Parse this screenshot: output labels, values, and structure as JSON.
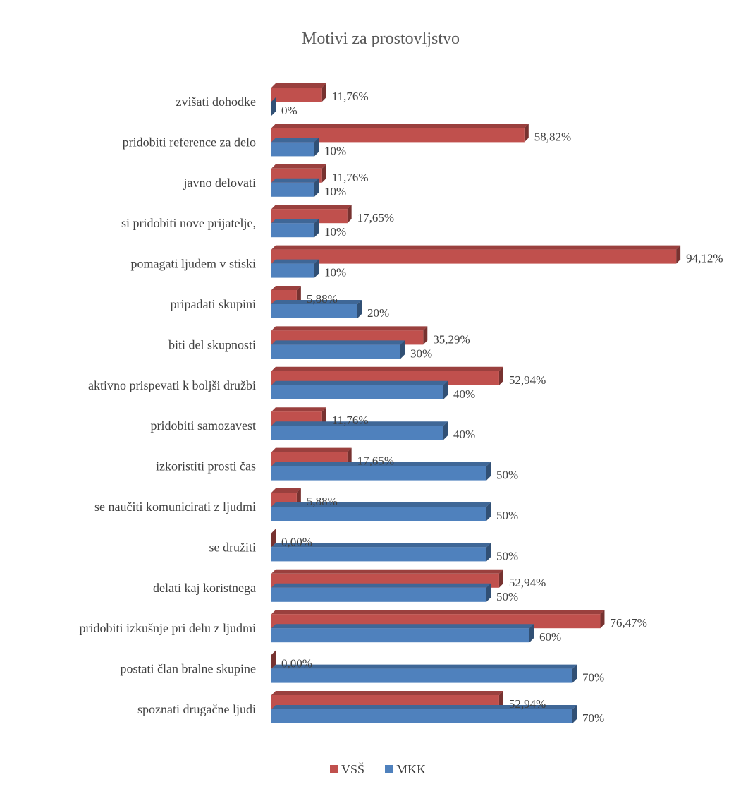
{
  "chart_data": {
    "type": "bar",
    "orientation": "horizontal",
    "style": "3d-clustered",
    "title": "Motivi za prostovljstvo",
    "categories": [
      "zvišati dohodke",
      "pridobiti reference za delo",
      "javno delovati",
      "si pridobiti nove prijatelje,",
      "pomagati ljudem v stiski",
      "pripadati skupini",
      "biti del skupnosti",
      "aktivno prispevati k boljši družbi",
      "pridobiti samozavest",
      "izkoristiti prosti čas",
      "se naučiti komunicirati z ljudmi",
      "se družiti",
      "delati kaj koristnega",
      "pridobiti izkušnje pri delu z ljudmi",
      "postati član bralne skupine",
      "spoznati drugačne ljudi"
    ],
    "series": [
      {
        "name": "VSŠ",
        "color": "#c0504d",
        "values": [
          11.76,
          58.82,
          11.76,
          17.65,
          94.12,
          5.88,
          35.29,
          52.94,
          11.76,
          17.65,
          5.88,
          0.0,
          52.94,
          76.47,
          0.0,
          52.94
        ],
        "labels": [
          "11,76%",
          "58,82%",
          "11,76%",
          "17,65%",
          "94,12%",
          "5,88%",
          "35,29%",
          "52,94%",
          "11,76%",
          "17,65%",
          "5,88%",
          "0,00%",
          "52,94%",
          "76,47%",
          "0,00%",
          "52,94%"
        ]
      },
      {
        "name": "MKK",
        "color": "#4f81bd",
        "values": [
          0,
          10,
          10,
          10,
          10,
          20,
          30,
          40,
          40,
          50,
          50,
          50,
          50,
          60,
          70,
          70
        ],
        "labels": [
          "0%",
          "10%",
          "10%",
          "10%",
          "10%",
          "20%",
          "30%",
          "40%",
          "40%",
          "50%",
          "50%",
          "50%",
          "50%",
          "60%",
          "70%",
          "70%"
        ]
      }
    ],
    "xlim": [
      0,
      100
    ],
    "grid": false,
    "legend_position": "bottom"
  }
}
